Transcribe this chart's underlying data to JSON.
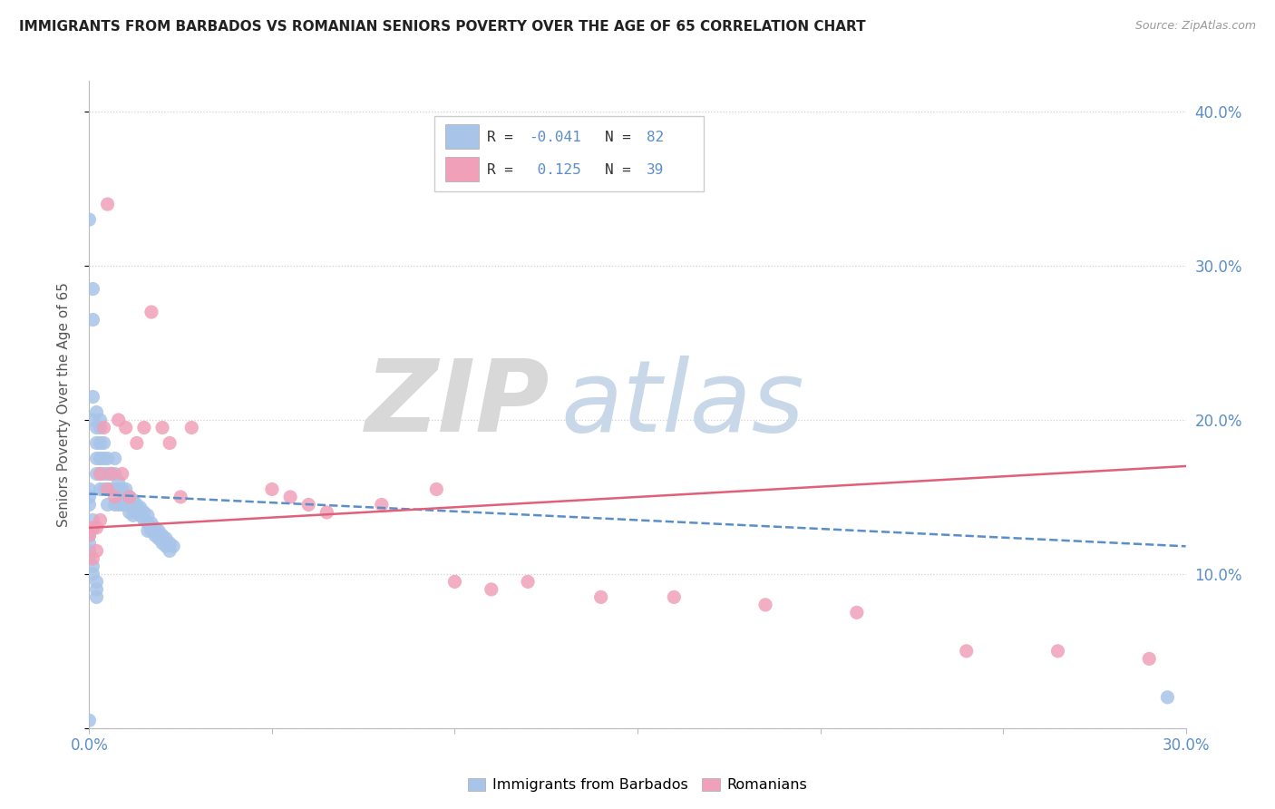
{
  "title": "IMMIGRANTS FROM BARBADOS VS ROMANIAN SENIORS POVERTY OVER THE AGE OF 65 CORRELATION CHART",
  "source": "Source: ZipAtlas.com",
  "ylabel": "Seniors Poverty Over the Age of 65",
  "legend_blue_label": "Immigrants from Barbados",
  "legend_pink_label": "Romanians",
  "blue_R": "-0.041",
  "blue_N": "82",
  "pink_R": "0.125",
  "pink_N": "39",
  "blue_scatter_x": [
    0.0,
    0.001,
    0.001,
    0.001,
    0.001,
    0.002,
    0.002,
    0.002,
    0.002,
    0.002,
    0.003,
    0.003,
    0.003,
    0.003,
    0.003,
    0.003,
    0.004,
    0.004,
    0.004,
    0.004,
    0.005,
    0.005,
    0.005,
    0.005,
    0.006,
    0.006,
    0.007,
    0.007,
    0.007,
    0.007,
    0.008,
    0.008,
    0.008,
    0.009,
    0.009,
    0.01,
    0.01,
    0.01,
    0.011,
    0.011,
    0.011,
    0.012,
    0.012,
    0.012,
    0.013,
    0.013,
    0.014,
    0.014,
    0.015,
    0.015,
    0.016,
    0.016,
    0.016,
    0.017,
    0.017,
    0.018,
    0.018,
    0.019,
    0.019,
    0.02,
    0.02,
    0.021,
    0.021,
    0.022,
    0.022,
    0.023,
    0.0,
    0.0,
    0.0,
    0.001,
    0.001,
    0.0,
    0.0,
    0.0,
    0.0,
    0.001,
    0.001,
    0.002,
    0.002,
    0.002,
    0.295,
    0.0
  ],
  "blue_scatter_y": [
    0.33,
    0.285,
    0.265,
    0.215,
    0.2,
    0.205,
    0.195,
    0.185,
    0.175,
    0.165,
    0.2,
    0.195,
    0.185,
    0.175,
    0.165,
    0.155,
    0.185,
    0.175,
    0.165,
    0.155,
    0.175,
    0.165,
    0.155,
    0.145,
    0.165,
    0.155,
    0.175,
    0.165,
    0.155,
    0.145,
    0.16,
    0.155,
    0.145,
    0.155,
    0.145,
    0.155,
    0.15,
    0.145,
    0.15,
    0.145,
    0.14,
    0.148,
    0.143,
    0.138,
    0.145,
    0.14,
    0.143,
    0.138,
    0.14,
    0.135,
    0.138,
    0.133,
    0.128,
    0.133,
    0.128,
    0.13,
    0.125,
    0.128,
    0.123,
    0.125,
    0.12,
    0.123,
    0.118,
    0.12,
    0.115,
    0.118,
    0.155,
    0.15,
    0.145,
    0.135,
    0.13,
    0.125,
    0.12,
    0.115,
    0.11,
    0.105,
    0.1,
    0.095,
    0.09,
    0.085,
    0.02,
    0.005
  ],
  "pink_scatter_x": [
    0.0,
    0.001,
    0.001,
    0.002,
    0.002,
    0.003,
    0.003,
    0.004,
    0.005,
    0.006,
    0.007,
    0.008,
    0.009,
    0.01,
    0.011,
    0.013,
    0.015,
    0.017,
    0.02,
    0.022,
    0.025,
    0.028,
    0.05,
    0.055,
    0.06,
    0.065,
    0.08,
    0.095,
    0.1,
    0.11,
    0.12,
    0.14,
    0.16,
    0.185,
    0.21,
    0.24,
    0.265,
    0.29,
    0.005
  ],
  "pink_scatter_y": [
    0.125,
    0.13,
    0.11,
    0.13,
    0.115,
    0.165,
    0.135,
    0.195,
    0.155,
    0.165,
    0.15,
    0.2,
    0.165,
    0.195,
    0.15,
    0.185,
    0.195,
    0.27,
    0.195,
    0.185,
    0.15,
    0.195,
    0.155,
    0.15,
    0.145,
    0.14,
    0.145,
    0.155,
    0.095,
    0.09,
    0.095,
    0.085,
    0.085,
    0.08,
    0.075,
    0.05,
    0.05,
    0.045,
    0.34
  ],
  "blue_line_x": [
    0.0,
    0.3
  ],
  "blue_line_y": [
    0.152,
    0.118
  ],
  "pink_line_x": [
    0.0,
    0.3
  ],
  "pink_line_y": [
    0.13,
    0.17
  ],
  "xlim": [
    0.0,
    0.3
  ],
  "ylim": [
    0.0,
    0.42
  ],
  "x_ticks": [
    0.0,
    0.05,
    0.1,
    0.15,
    0.2,
    0.25,
    0.3
  ],
  "x_tick_labels_show": [
    true,
    false,
    false,
    false,
    false,
    false,
    true
  ],
  "blue_color": "#a8c4e8",
  "pink_color": "#f0a0b8",
  "blue_line_color": "#5b8ec9",
  "pink_line_color": "#e0607a",
  "watermark_zip": "ZIP",
  "watermark_atlas": "atlas",
  "background_color": "#ffffff"
}
